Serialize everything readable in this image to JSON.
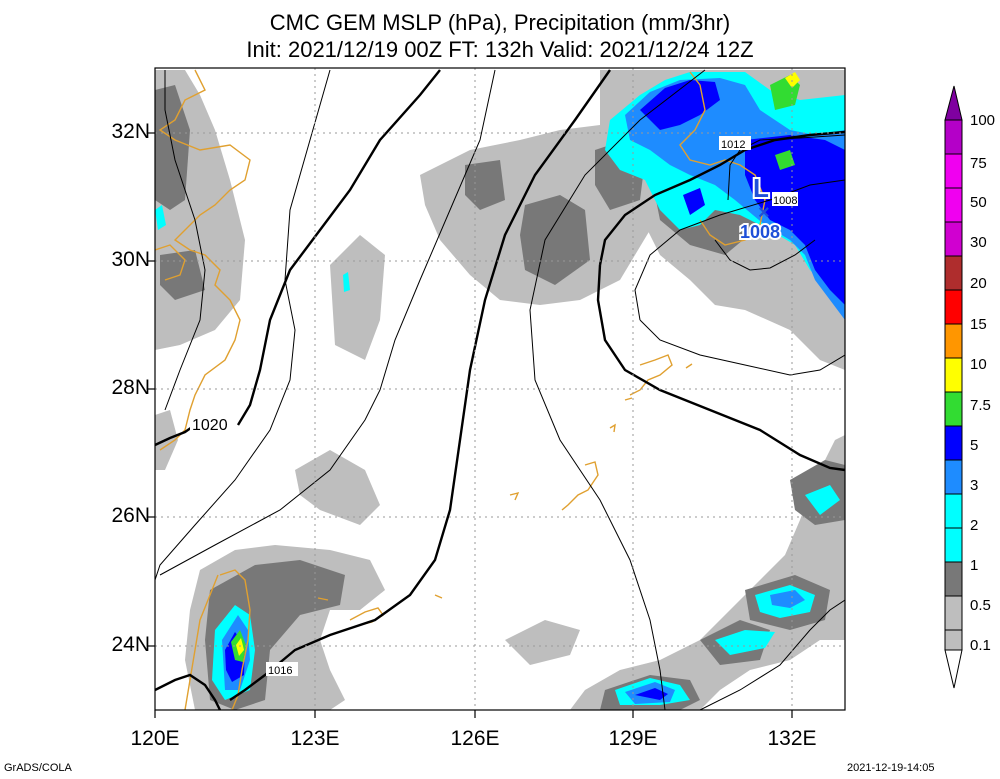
{
  "title_line1": "CMC GEM MSLP (hPa), Precipitation (mm/3hr)",
  "title_line2": "Init: 2021/12/19 00Z  FT: 132h  Valid: 2021/12/24 12Z",
  "map": {
    "lon_range": [
      120,
      133
    ],
    "lat_range": [
      23,
      33
    ],
    "lon_ticks": [
      "120E",
      "123E",
      "126E",
      "129E",
      "132E"
    ],
    "lat_ticks": [
      "32N",
      "30N",
      "28N",
      "26N",
      "24N"
    ]
  },
  "isobar_labels": [
    "1020",
    "1016",
    "1012",
    "1008"
  ],
  "low_center": {
    "symbol": "L",
    "pressure": "1008",
    "lon": 131.5,
    "lat": 30.8
  },
  "colorbar": {
    "levels": [
      "100",
      "75",
      "50",
      "30",
      "20",
      "15",
      "10",
      "7.5",
      "5",
      "3",
      "2",
      "1",
      "0.5",
      "0.1"
    ],
    "colors": [
      "#7f00a0",
      "#b400c8",
      "#f000f0",
      "#af2d2d",
      "#ff0000",
      "#ff9600",
      "#ffff00",
      "#32dc32",
      "#0000ff",
      "#1e8cff",
      "#00ffff",
      "#787878",
      "#bebebe"
    ]
  },
  "colors": {
    "coastline": "#e0a030",
    "low_symbol": "#1f4fd8"
  },
  "footer_left": "GrADS/COLA",
  "footer_right": "2021-12-19-14:05"
}
